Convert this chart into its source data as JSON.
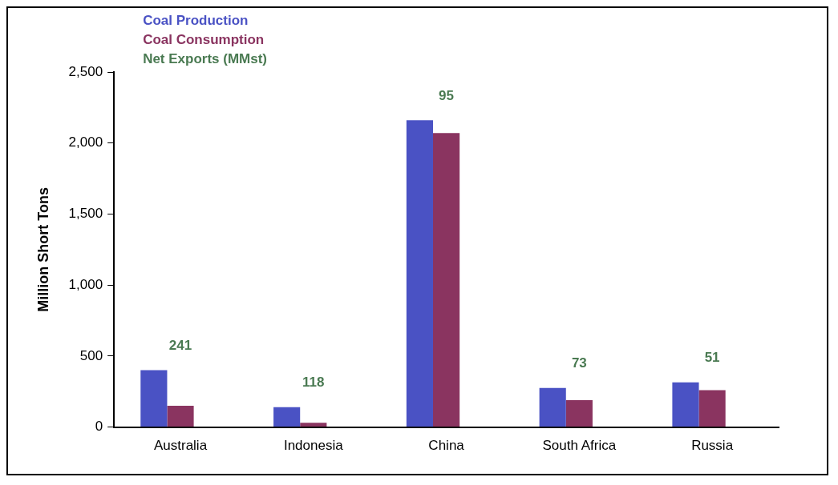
{
  "chart_data": {
    "type": "bar",
    "ylabel": "Million Short Tons",
    "categories": [
      "Australia",
      "Indonesia",
      "China",
      "South Africa",
      "Russia"
    ],
    "series": [
      {
        "name": "Coal Production",
        "color": "#4a52c4",
        "values": [
          400,
          140,
          2160,
          275,
          315
        ]
      },
      {
        "name": "Coal Consumption",
        "color": "#8a3460",
        "values": [
          150,
          30,
          2070,
          190,
          260
        ]
      },
      {
        "name": "Net Exports (MMst)",
        "color": "#4a7a52",
        "values": [
          null,
          null,
          null,
          null,
          null
        ],
        "value_labels": [
          "241",
          "118",
          "95",
          "73",
          "51"
        ]
      }
    ],
    "ylim": [
      0,
      2500
    ],
    "yticks": [
      {
        "value": 0,
        "label": "0"
      },
      {
        "value": 500,
        "label": "500"
      },
      {
        "value": 1000,
        "label": "1,000"
      },
      {
        "value": 1500,
        "label": "1,500"
      },
      {
        "value": 2000,
        "label": "2,000"
      },
      {
        "value": 2500,
        "label": "2,500"
      }
    ],
    "grid": false,
    "legend": "top left"
  }
}
